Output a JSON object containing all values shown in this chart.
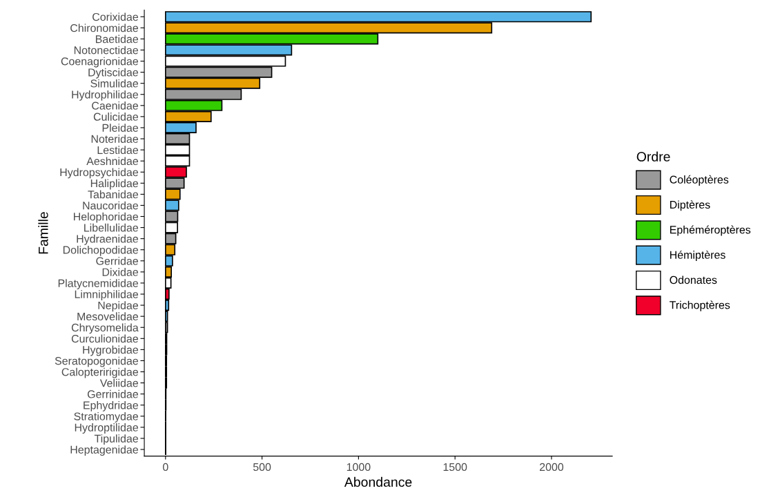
{
  "chart_data": {
    "type": "bar",
    "orientation": "horizontal",
    "xlabel": "Abondance",
    "ylabel": "Famille",
    "legend_title": "Ordre",
    "legend": "right",
    "grid": false,
    "categories": [
      "Corixidae",
      "Chironomidae",
      "Baetidae",
      "Notonectidae",
      "Coenagrionidae",
      "Dytiscidae",
      "Simulidae",
      "Hydrophilidae",
      "Caenidae",
      "Culicidae",
      "Pleidae",
      "Noteridae",
      "Lestidae",
      "Aeshnidae",
      "Hydropsychidae",
      "Haliplidae",
      "Tabanidae",
      "Naucoridae",
      "Helophoridae",
      "Libellulidae",
      "Hydraenidae",
      "Dolichopodidae",
      "Gerridae",
      "Dixidae",
      "Platycnemididae",
      "Limniphilidae",
      "Nepidae",
      "Mesovelidae",
      "Chrysomelida",
      "Curculionidae",
      "Hygrobidae",
      "Seratopogonidae",
      "Calopteririgidae",
      "Veliidae",
      "Gerrinidae",
      "Ephydridae",
      "Stratiomydae",
      "Hydroptilidae",
      "Tipulidae",
      "Heptagenidae"
    ],
    "series": [
      {
        "name": "Coléoptères",
        "color": "#999999",
        "values": [
          null,
          null,
          null,
          null,
          null,
          550,
          null,
          392,
          null,
          null,
          null,
          124,
          null,
          null,
          null,
          96,
          null,
          null,
          63,
          null,
          53,
          null,
          null,
          null,
          null,
          null,
          null,
          null,
          10,
          6,
          6,
          null,
          null,
          null,
          null,
          null,
          null,
          null,
          null,
          null
        ]
      },
      {
        "name": "Diptères",
        "color": "#e69f00",
        "values": [
          null,
          1690,
          null,
          null,
          null,
          null,
          488,
          null,
          null,
          236,
          null,
          null,
          null,
          null,
          null,
          null,
          75,
          null,
          null,
          null,
          null,
          48,
          null,
          30,
          null,
          null,
          null,
          null,
          null,
          null,
          null,
          5,
          null,
          null,
          null,
          2,
          1,
          null,
          1,
          null
        ]
      },
      {
        "name": "Ephéméroptères",
        "color": "#33cc00",
        "values": [
          null,
          null,
          1100,
          null,
          null,
          null,
          null,
          null,
          292,
          null,
          null,
          null,
          null,
          null,
          null,
          null,
          null,
          null,
          null,
          null,
          null,
          null,
          null,
          null,
          null,
          null,
          null,
          null,
          null,
          null,
          null,
          null,
          null,
          null,
          null,
          null,
          null,
          null,
          null,
          1
        ]
      },
      {
        "name": "Hémiptères",
        "color": "#56b4e9",
        "values": [
          2205,
          null,
          null,
          653,
          null,
          null,
          null,
          null,
          null,
          null,
          158,
          null,
          null,
          null,
          null,
          null,
          null,
          68,
          null,
          null,
          null,
          null,
          36,
          null,
          null,
          null,
          16,
          10,
          null,
          null,
          null,
          null,
          null,
          5,
          2,
          null,
          null,
          null,
          null,
          null
        ]
      },
      {
        "name": "Odonates",
        "color": "#ffffff",
        "values": [
          null,
          null,
          null,
          null,
          621,
          null,
          null,
          null,
          null,
          null,
          null,
          null,
          124,
          124,
          null,
          null,
          null,
          null,
          null,
          62,
          null,
          null,
          null,
          null,
          28,
          null,
          null,
          null,
          null,
          null,
          null,
          null,
          5,
          null,
          null,
          null,
          null,
          null,
          null,
          null
        ]
      },
      {
        "name": "Trichoptères",
        "color": "#f0002a",
        "values": [
          null,
          null,
          null,
          null,
          null,
          null,
          null,
          null,
          null,
          null,
          null,
          null,
          null,
          null,
          108,
          null,
          null,
          null,
          null,
          null,
          null,
          null,
          null,
          null,
          null,
          18,
          null,
          null,
          null,
          null,
          null,
          null,
          null,
          null,
          null,
          null,
          null,
          1,
          null,
          null
        ]
      }
    ],
    "xlim": [
      -110,
      2315
    ],
    "xticks": [
      0,
      500,
      1000,
      1500,
      2000
    ]
  }
}
